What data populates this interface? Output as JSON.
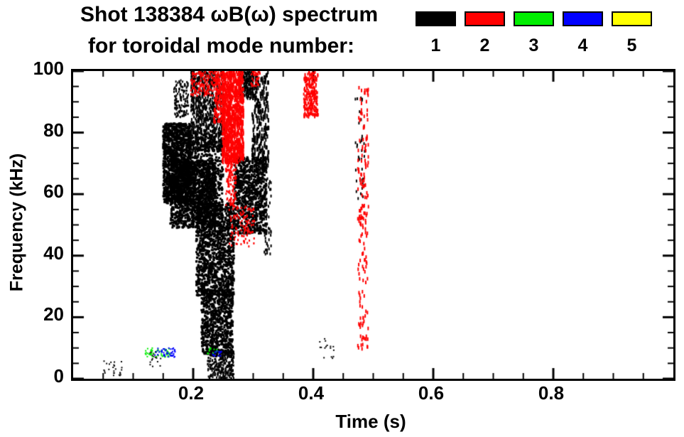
{
  "title": {
    "line1": "Shot 138384 ωB(ω) spectrum",
    "line2": "for toroidal mode number:"
  },
  "legend": {
    "items": [
      {
        "label": "1",
        "color": "#000000"
      },
      {
        "label": "2",
        "color": "#ff0000"
      },
      {
        "label": "3",
        "color": "#00ee00"
      },
      {
        "label": "4",
        "color": "#0000ff"
      },
      {
        "label": "5",
        "color": "#ffff00"
      }
    ]
  },
  "chart_data": {
    "type": "scatter",
    "title": "Shot 138384 ωB(ω) spectrum for toroidal mode number: 1 2 3 4 5",
    "xlabel": "Time (s)",
    "ylabel": "Frequency (kHz)",
    "xlim": [
      0.0,
      1.0
    ],
    "ylim": [
      0,
      100
    ],
    "grid": false,
    "legend_position": "top-right",
    "xticks": {
      "major": [
        0.2,
        0.4,
        0.6,
        0.8
      ],
      "labels": [
        "0.2",
        "0.4",
        "0.6",
        "0.8"
      ],
      "minor_step": 0.05
    },
    "yticks": {
      "major": [
        0,
        20,
        40,
        60,
        80,
        100
      ],
      "labels": [
        "0",
        "20",
        "40",
        "60",
        "80",
        "100"
      ],
      "minor_step": 5
    },
    "series": [
      {
        "name": "n=1",
        "mode": 1,
        "color": "#000000",
        "clusters": [
          {
            "t": [
              0.15,
              0.196
            ],
            "f": [
              57,
              83
            ],
            "n": 1300,
            "w": 3,
            "h": 3
          },
          {
            "t": [
              0.162,
              0.238
            ],
            "f": [
              49,
              71
            ],
            "n": 1300,
            "w": 3,
            "h": 3
          },
          {
            "t": [
              0.186,
              0.25
            ],
            "f": [
              55,
              80
            ],
            "n": 600,
            "w": 3,
            "h": 3
          },
          {
            "t": [
              0.196,
              0.252
            ],
            "f": [
              74,
              100
            ],
            "n": 800,
            "w": 2,
            "h": 4
          },
          {
            "t": [
              0.168,
              0.192
            ],
            "f": [
              85,
              97
            ],
            "n": 130,
            "w": 2,
            "h": 3
          },
          {
            "t": [
              0.205,
              0.268
            ],
            "f": [
              27,
              57
            ],
            "n": 1300,
            "w": 3,
            "h": 3
          },
          {
            "t": [
              0.214,
              0.266
            ],
            "f": [
              8,
              29
            ],
            "n": 800,
            "w": 3,
            "h": 3
          },
          {
            "t": [
              0.224,
              0.268
            ],
            "f": [
              0,
              9
            ],
            "n": 300,
            "w": 2,
            "h": 3
          },
          {
            "t": [
              0.268,
              0.322
            ],
            "f": [
              47,
              72
            ],
            "n": 900,
            "w": 3,
            "h": 3
          },
          {
            "t": [
              0.298,
              0.326
            ],
            "f": [
              68,
              100
            ],
            "n": 260,
            "w": 2,
            "h": 6
          },
          {
            "t": [
              0.276,
              0.3
            ],
            "f": [
              91,
              100
            ],
            "n": 180,
            "w": 2,
            "h": 4
          },
          {
            "t": [
              0.318,
              0.33
            ],
            "f": [
              40,
              65
            ],
            "n": 60,
            "w": 2,
            "h": 4
          },
          {
            "t": [
              0.05,
              0.085
            ],
            "f": [
              1,
              6
            ],
            "n": 25,
            "w": 2,
            "h": 2
          },
          {
            "t": [
              0.128,
              0.148
            ],
            "f": [
              4,
              9
            ],
            "n": 22,
            "w": 2,
            "h": 2
          },
          {
            "t": [
              0.405,
              0.435
            ],
            "f": [
              6,
              13
            ],
            "n": 16,
            "w": 2,
            "h": 2
          },
          {
            "t": [
              0.47,
              0.486
            ],
            "f": [
              58,
              92
            ],
            "n": 40,
            "w": 2,
            "h": 4
          }
        ]
      },
      {
        "name": "n=2",
        "mode": 2,
        "color": "#ff0000",
        "clusters": [
          {
            "t": [
              0.248,
              0.284
            ],
            "f": [
              70,
              100
            ],
            "n": 1000,
            "w": 2,
            "h": 5
          },
          {
            "t": [
              0.196,
              0.234
            ],
            "f": [
              92,
              100
            ],
            "n": 140,
            "w": 2,
            "h": 3
          },
          {
            "t": [
              0.234,
              0.252
            ],
            "f": [
              83,
              100
            ],
            "n": 180,
            "w": 2,
            "h": 4
          },
          {
            "t": [
              0.254,
              0.272
            ],
            "f": [
              56,
              72
            ],
            "n": 130,
            "w": 2,
            "h": 3
          },
          {
            "t": [
              0.26,
              0.302
            ],
            "f": [
              43,
              56
            ],
            "n": 110,
            "w": 2,
            "h": 3
          },
          {
            "t": [
              0.384,
              0.408
            ],
            "f": [
              85,
              100
            ],
            "n": 240,
            "w": 2,
            "h": 4
          },
          {
            "t": [
              0.474,
              0.492
            ],
            "f": [
              9,
              95
            ],
            "n": 170,
            "w": 2,
            "h": 5
          },
          {
            "t": [
              0.296,
              0.312
            ],
            "f": [
              95,
              100
            ],
            "n": 40,
            "w": 2,
            "h": 3
          }
        ]
      },
      {
        "name": "n=3",
        "mode": 3,
        "color": "#00ee00",
        "clusters": [
          {
            "t": [
              0.12,
              0.162
            ],
            "f": [
              7,
              10
            ],
            "n": 50,
            "w": 2,
            "h": 2
          },
          {
            "t": [
              0.224,
              0.242
            ],
            "f": [
              8,
              10
            ],
            "n": 14,
            "w": 2,
            "h": 2
          }
        ]
      },
      {
        "name": "n=4",
        "mode": 4,
        "color": "#0000ff",
        "clusters": [
          {
            "t": [
              0.136,
              0.17
            ],
            "f": [
              7,
              10
            ],
            "n": 45,
            "w": 2,
            "h": 2
          },
          {
            "t": [
              0.23,
              0.248
            ],
            "f": [
              7,
              9
            ],
            "n": 16,
            "w": 2,
            "h": 2
          }
        ]
      },
      {
        "name": "n=5",
        "mode": 5,
        "color": "#ffff00",
        "clusters": []
      }
    ]
  }
}
